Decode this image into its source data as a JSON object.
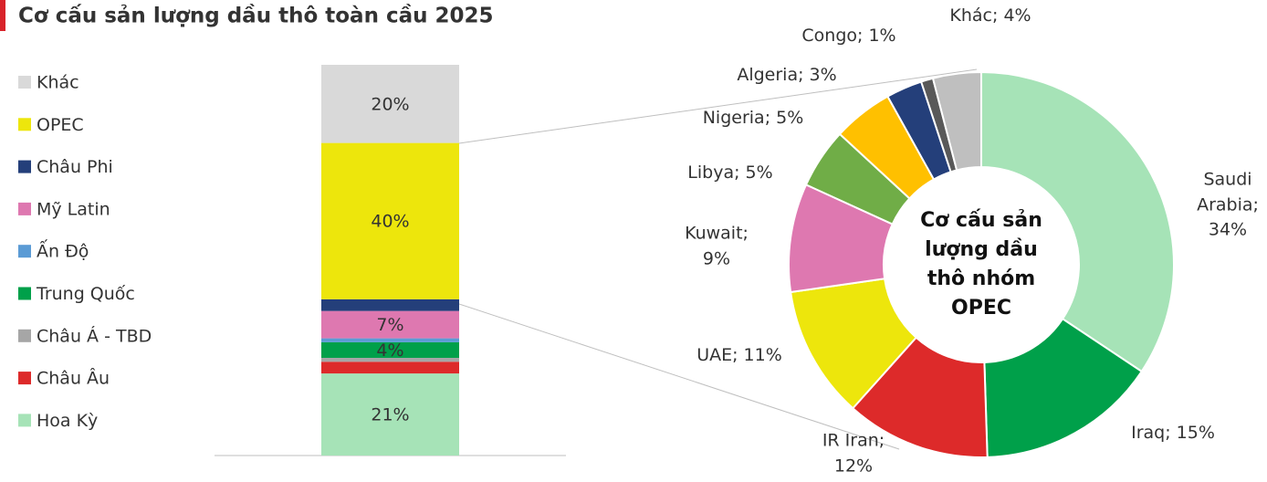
{
  "title": "Cơ cấu sản lượng dầu thô toàn cầu 2025",
  "chart_data": [
    {
      "type": "stacked_bar",
      "ylim": [
        0,
        100
      ],
      "series": [
        {
          "name": "Hoa Kỳ",
          "color": "#a6e3b7",
          "values": [
            21
          ],
          "value_labels": [
            "21%"
          ]
        },
        {
          "name": "Châu Âu",
          "color": "#dd2a2a",
          "values": [
            3
          ]
        },
        {
          "name": "Châu Á - TBD",
          "color": "#a6a6a6",
          "values": [
            1
          ]
        },
        {
          "name": "Trung Quốc",
          "color": "#00a04a",
          "values": [
            4
          ],
          "value_labels": [
            "4%"
          ]
        },
        {
          "name": "Ấn Độ",
          "color": "#5b9bd5",
          "values": [
            1
          ]
        },
        {
          "name": "Mỹ Latin",
          "color": "#de78b0",
          "values": [
            7
          ],
          "value_labels": [
            "7%"
          ]
        },
        {
          "name": "Châu Phi",
          "color": "#243f7a",
          "values": [
            3
          ]
        },
        {
          "name": "OPEC",
          "color": "#ede60c",
          "values": [
            40
          ],
          "value_labels": [
            "40%"
          ]
        },
        {
          "name": "Khác",
          "color": "#d9d9d9",
          "values": [
            20
          ],
          "value_labels": [
            "20%"
          ]
        }
      ]
    },
    {
      "type": "donut",
      "center_label": "Cơ cấu sản lượng dầu thô nhóm OPEC",
      "categories": [
        "Saudi Arabia",
        "Iraq",
        "IR Iran",
        "UAE",
        "Kuwait",
        "Libya",
        "Nigeria",
        "Algeria",
        "Congo",
        "Khác"
      ],
      "values": [
        34,
        15,
        12,
        11,
        9,
        5,
        5,
        3,
        1,
        4
      ],
      "value_labels": [
        "Saudi Arabia; 34%",
        "Iraq; 15%",
        "IR Iran; 12%",
        "UAE; 11%",
        "Kuwait; 9%",
        "Libya; 5%",
        "Nigeria; 5%",
        "Algeria; 3%",
        "Congo; 1%",
        "Khác; 4%"
      ],
      "colors": [
        "#a6e3b7",
        "#00a04a",
        "#dd2a2a",
        "#ede60c",
        "#de78b0",
        "#70ad47",
        "#ffc000",
        "#243f7a",
        "#595959",
        "#bfbfbf"
      ]
    }
  ]
}
